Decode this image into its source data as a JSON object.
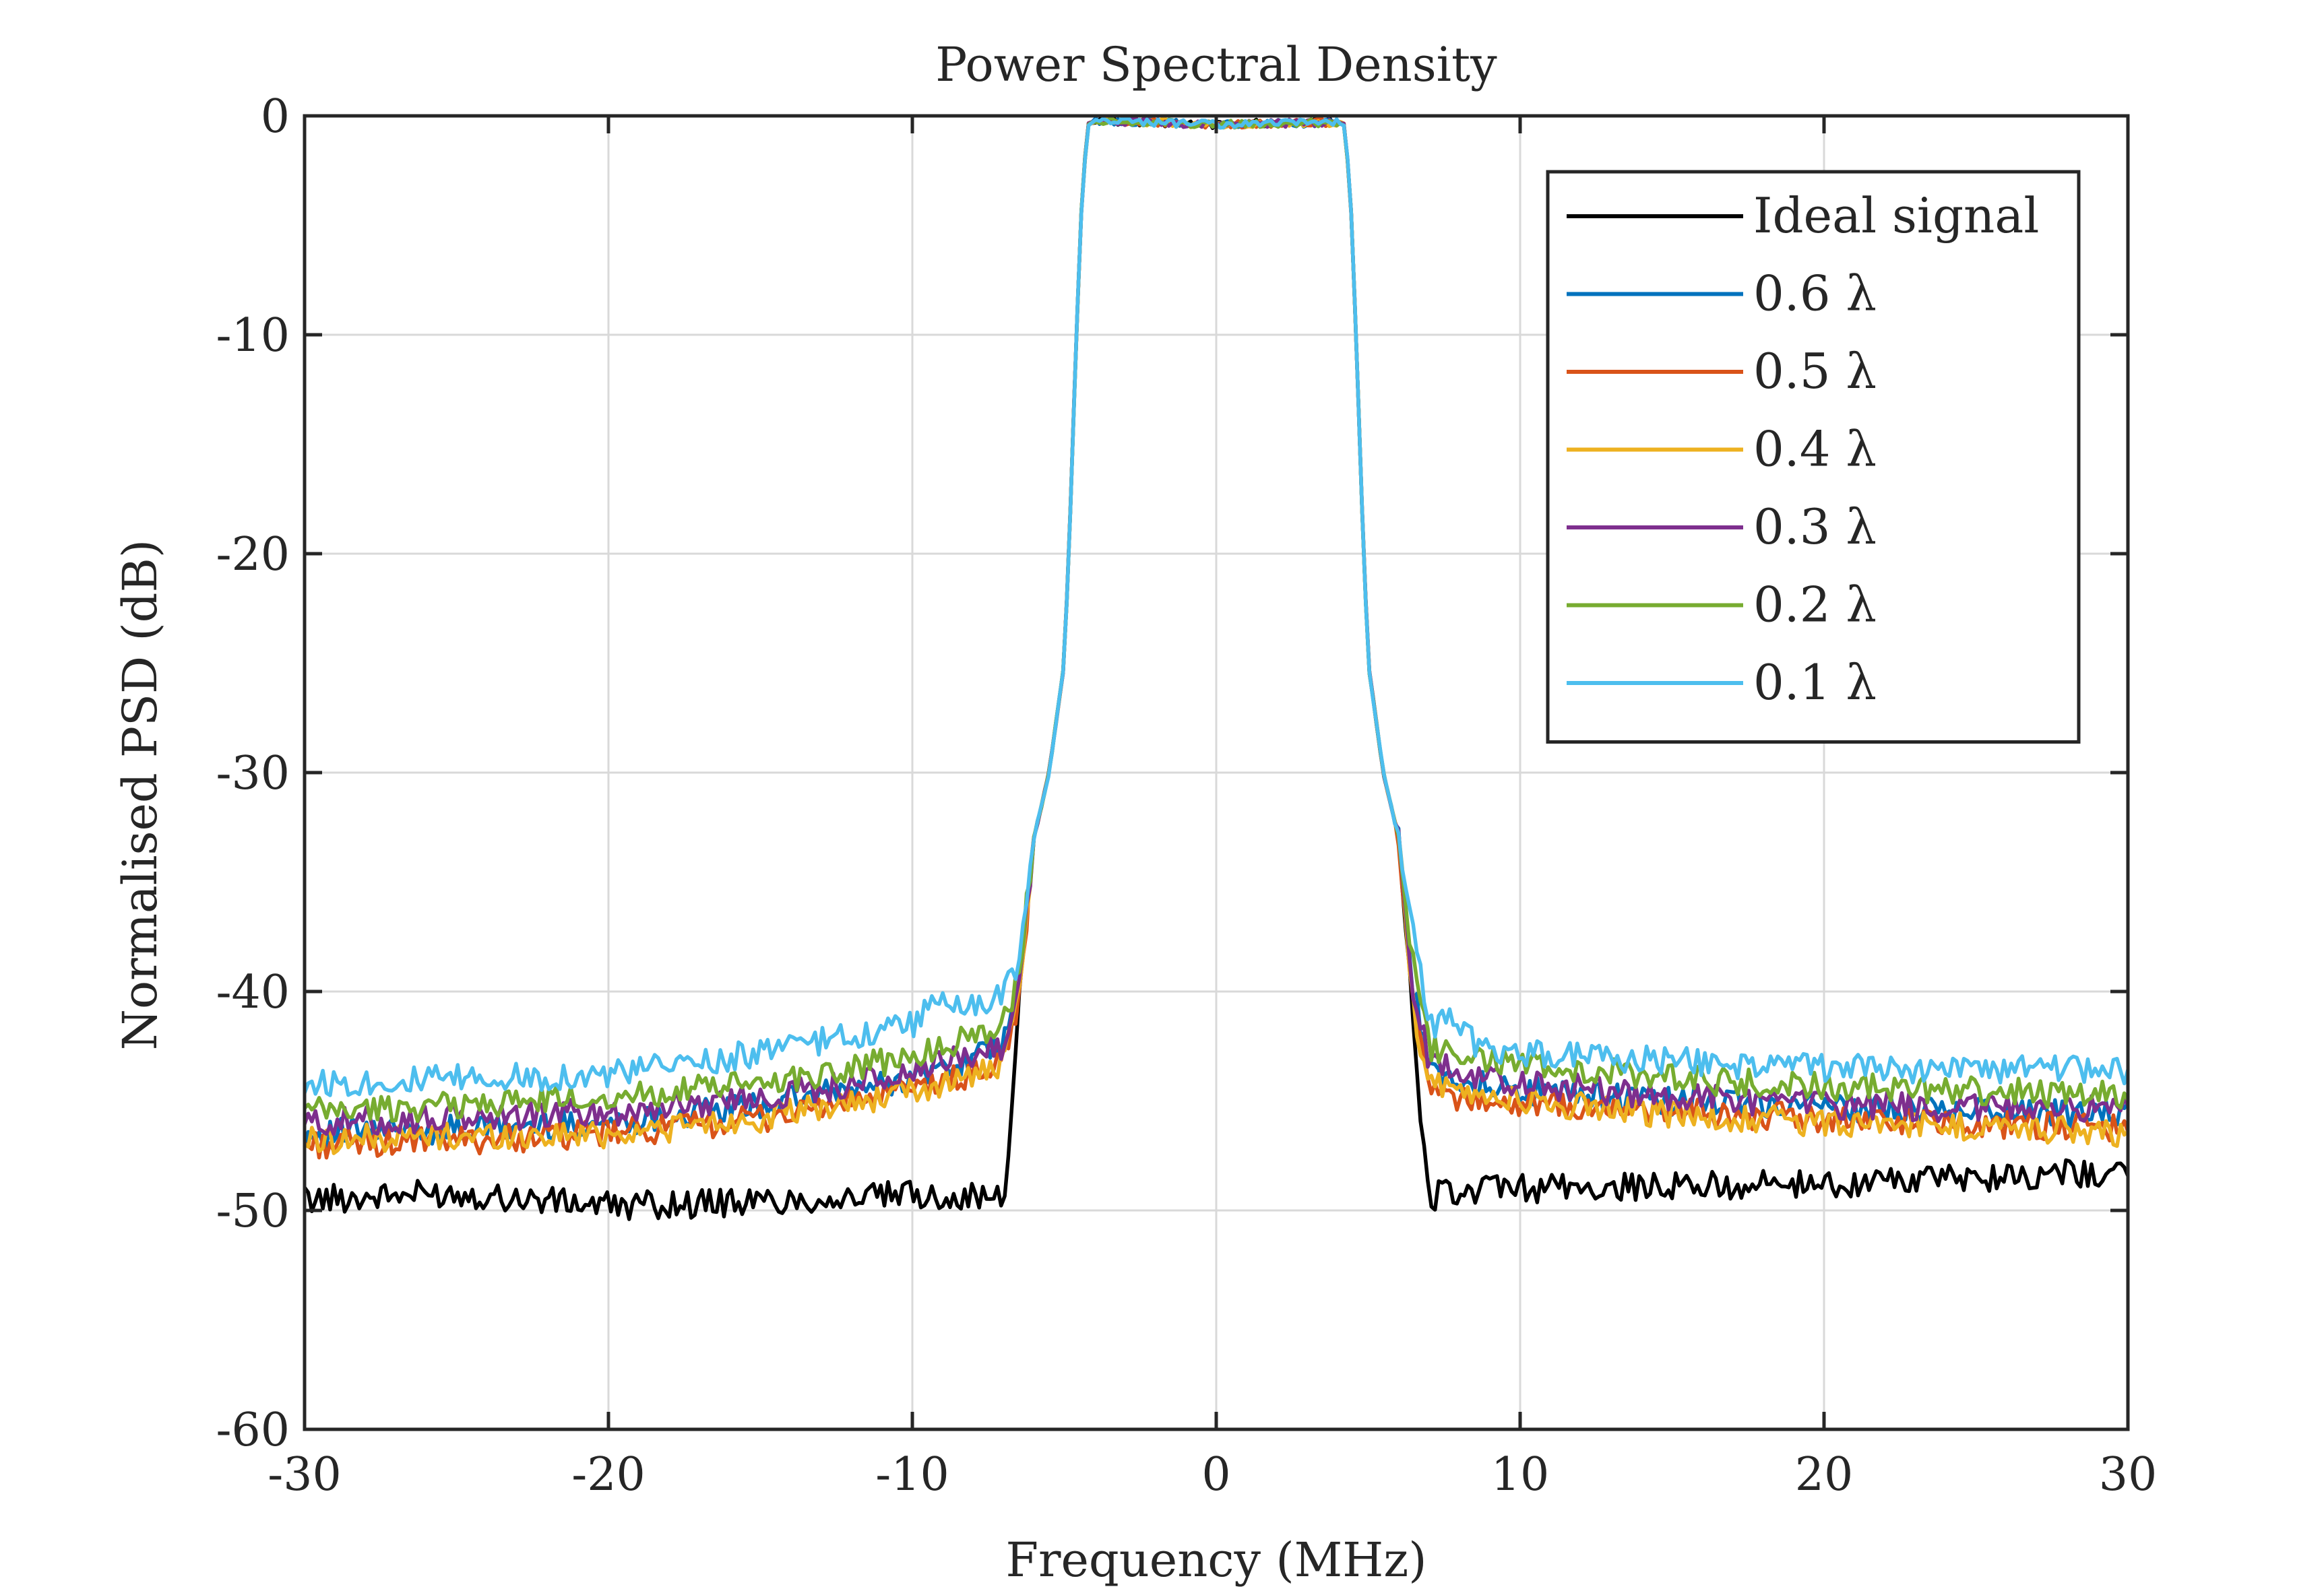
{
  "chart_data": {
    "type": "line",
    "title": "Power Spectral Density",
    "xlabel": "Frequency (MHz)",
    "ylabel": "Normalised PSD (dB)",
    "xlim": [
      -30,
      30
    ],
    "ylim": [
      -60,
      0
    ],
    "xticks": [
      -30,
      -20,
      -10,
      0,
      10,
      20,
      30
    ],
    "yticks": [
      0,
      -10,
      -20,
      -30,
      -40,
      -50,
      -60
    ],
    "xtick_labels": [
      "-30",
      "-20",
      "-10",
      "0",
      "10",
      "20",
      "30"
    ],
    "ytick_labels": [
      "0",
      "-10",
      "-20",
      "-30",
      "-40",
      "-50",
      "-60"
    ],
    "grid": true,
    "legend_position": "top-right",
    "series": [
      {
        "name": "Ideal signal",
        "legend_name": "Ideal signal",
        "color": "#000000",
        "x": [
          -30,
          -25,
          -20,
          -15,
          -10,
          -7.5,
          -7,
          -6.8,
          -6.5,
          -6,
          -5.5,
          -5,
          -4.8,
          -4.6,
          -4.4,
          -4.2,
          -4,
          0,
          4,
          4.2,
          4.4,
          4.6,
          4.8,
          5,
          5.5,
          6,
          6.5,
          6.8,
          7,
          7.5,
          10,
          15,
          20,
          25,
          30
        ],
        "y": [
          -49.5,
          -49.2,
          -49.8,
          -49.6,
          -49.3,
          -49.4,
          -49.6,
          -47,
          -40,
          -33,
          -30,
          -25,
          -18,
          -10,
          -3,
          -0.4,
          -0.2,
          -0.4,
          -0.2,
          -0.4,
          -3,
          -10,
          -18,
          -25,
          -30,
          -33,
          -42,
          -47,
          -49.5,
          -49.2,
          -49,
          -48.9,
          -48.8,
          -48.5,
          -48.2
        ]
      },
      {
        "name": "0.6 λ",
        "legend_name": "0.6 λ",
        "color": "#0072bd",
        "x": [
          -30,
          -25,
          -20,
          -15,
          -10,
          -8,
          -7,
          -6.5,
          -6,
          -5.5,
          -5,
          -4.8,
          -4.6,
          -4.4,
          -4.2,
          -4,
          0,
          4,
          4.2,
          4.4,
          4.6,
          4.8,
          5,
          5.5,
          6,
          6.5,
          7,
          8,
          10,
          15,
          20,
          25,
          30
        ],
        "y": [
          -46.5,
          -46.3,
          -46,
          -45.2,
          -44,
          -43,
          -42.5,
          -40,
          -33,
          -30,
          -25,
          -18,
          -10,
          -3,
          -0.4,
          -0.2,
          -0.4,
          -0.3,
          -0.4,
          -3,
          -10,
          -18,
          -25,
          -30,
          -33,
          -40,
          -43.5,
          -44,
          -44.5,
          -45,
          -45.3,
          -45.5,
          -45.6
        ]
      },
      {
        "name": "0.5 λ",
        "legend_name": "0.5 λ",
        "color": "#d95319",
        "x": [
          -30,
          -25,
          -20,
          -15,
          -10,
          -8,
          -7,
          -6.5,
          -6,
          -5.5,
          -5,
          -4.8,
          -4.6,
          -4.4,
          -4.2,
          -4,
          0,
          4,
          4.2,
          4.4,
          4.6,
          4.8,
          5,
          5.5,
          6,
          6.5,
          7,
          8,
          10,
          15,
          20,
          25,
          30
        ],
        "y": [
          -47,
          -46.8,
          -46.5,
          -45.8,
          -44.5,
          -43.8,
          -43.2,
          -40.5,
          -33,
          -30,
          -25,
          -18,
          -10,
          -3,
          -0.4,
          -0.2,
          -0.4,
          -0.3,
          -0.4,
          -3,
          -10,
          -18,
          -25,
          -30,
          -33,
          -41,
          -44.5,
          -44.8,
          -45.2,
          -45.5,
          -45.8,
          -46,
          -46.3
        ]
      },
      {
        "name": "0.4 λ",
        "legend_name": "0.4 λ",
        "color": "#edb120",
        "x": [
          -30,
          -25,
          -20,
          -15,
          -10,
          -8,
          -7,
          -6.5,
          -6,
          -5.5,
          -5,
          -4.8,
          -4.6,
          -4.4,
          -4.2,
          -4,
          0,
          4,
          4.2,
          4.4,
          4.6,
          4.8,
          5,
          5.5,
          6,
          6.5,
          7,
          8,
          10,
          15,
          20,
          25,
          30
        ],
        "y": [
          -46.8,
          -46.6,
          -46.5,
          -45.8,
          -44.6,
          -43.8,
          -43.4,
          -40.5,
          -33,
          -30,
          -25,
          -18,
          -10,
          -3,
          -0.4,
          -0.2,
          -0.4,
          -0.3,
          -0.4,
          -3,
          -10,
          -18,
          -25,
          -30,
          -33,
          -41,
          -44.2,
          -44.6,
          -45,
          -45.6,
          -46,
          -46.2,
          -46.5
        ]
      },
      {
        "name": "0.3 λ",
        "legend_name": "0.3 λ",
        "color": "#7e2f8e",
        "x": [
          -30,
          -25,
          -20,
          -15,
          -10,
          -8,
          -7,
          -6.5,
          -6,
          -5.5,
          -5,
          -4.8,
          -4.6,
          -4.4,
          -4.2,
          -4,
          0,
          4,
          4.2,
          4.4,
          4.6,
          4.8,
          5,
          5.5,
          6,
          6.5,
          7,
          8,
          10,
          15,
          20,
          25,
          30
        ],
        "y": [
          -46,
          -45.8,
          -45.5,
          -44.8,
          -43.8,
          -42.8,
          -42.4,
          -40,
          -33,
          -30,
          -25,
          -18,
          -10,
          -3,
          -0.4,
          -0.2,
          -0.4,
          -0.3,
          -0.4,
          -3,
          -10,
          -18,
          -25,
          -30,
          -33,
          -40,
          -43.2,
          -43.6,
          -44.2,
          -44.8,
          -45.2,
          -45.3,
          -45.4
        ]
      },
      {
        "name": "0.2 λ",
        "legend_name": "0.2 λ",
        "color": "#77ac30",
        "x": [
          -30,
          -25,
          -20,
          -15,
          -10,
          -8,
          -7,
          -6.5,
          -6,
          -5.5,
          -5,
          -4.8,
          -4.6,
          -4.4,
          -4.2,
          -4,
          0,
          4,
          4.2,
          4.4,
          4.6,
          4.8,
          5,
          5.5,
          6,
          6.5,
          7,
          8,
          10,
          15,
          20,
          25,
          30
        ],
        "y": [
          -45.5,
          -45.2,
          -44.8,
          -44.2,
          -43,
          -42,
          -41.4,
          -39.5,
          -33,
          -30,
          -25,
          -18,
          -10,
          -3,
          -0.4,
          -0.2,
          -0.4,
          -0.3,
          -0.4,
          -3,
          -10,
          -18,
          -25,
          -30,
          -33,
          -39,
          -42.5,
          -42.8,
          -43.3,
          -44,
          -44.3,
          -44.5,
          -44.8
        ]
      },
      {
        "name": "0.1 λ",
        "legend_name": "0.1 λ",
        "color": "#4dbeee",
        "x": [
          -30,
          -25,
          -20,
          -15,
          -10,
          -9,
          -8,
          -7,
          -6.5,
          -6,
          -5.5,
          -5,
          -4.8,
          -4.6,
          -4.4,
          -4.2,
          -4,
          0,
          4,
          4.2,
          4.4,
          4.6,
          4.8,
          5,
          5.5,
          6,
          6.5,
          7,
          8,
          8.5,
          10,
          15,
          20,
          25,
          30
        ],
        "y": [
          -44.2,
          -44,
          -43.8,
          -42.8,
          -41.5,
          -40.2,
          -40.8,
          -40.2,
          -38.5,
          -33,
          -30,
          -25,
          -18,
          -10,
          -3,
          -0.4,
          -0.2,
          -0.4,
          -0.3,
          -0.4,
          -3,
          -10,
          -18,
          -25,
          -30,
          -33,
          -37.5,
          -41.5,
          -41.3,
          -42.5,
          -42.8,
          -43.2,
          -43.5,
          -43.6,
          -43.6
        ]
      }
    ]
  }
}
